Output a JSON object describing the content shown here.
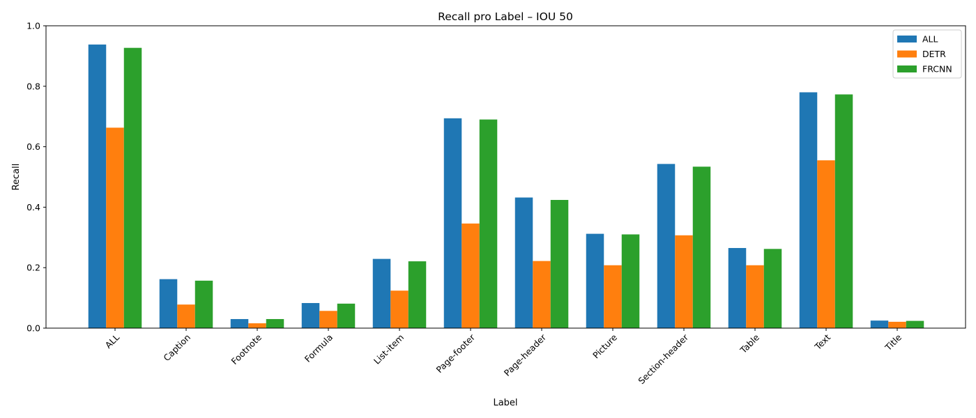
{
  "chart_data": {
    "type": "bar",
    "title": "Recall pro Label – IOU 50",
    "xlabel": "Label",
    "ylabel": "Recall",
    "ylim": [
      0,
      1.0
    ],
    "yticks": [
      "0.0",
      "0.2",
      "0.4",
      "0.6",
      "0.8",
      "1.0"
    ],
    "grid": false,
    "legend_position": "top-right",
    "categories": [
      "ALL",
      "Caption",
      "Footnote",
      "Formula",
      "List-item",
      "Page-footer",
      "Page-header",
      "Picture",
      "Section-header",
      "Table",
      "Text",
      "Title"
    ],
    "series": [
      {
        "name": "ALL",
        "color": "#1f77b4",
        "values": [
          0.938,
          0.162,
          0.03,
          0.083,
          0.229,
          0.694,
          0.432,
          0.312,
          0.543,
          0.265,
          0.78,
          0.025
        ]
      },
      {
        "name": "DETR",
        "color": "#ff7f0e",
        "values": [
          0.663,
          0.078,
          0.016,
          0.057,
          0.124,
          0.346,
          0.222,
          0.208,
          0.307,
          0.208,
          0.555,
          0.021
        ]
      },
      {
        "name": "FRCNN",
        "color": "#2ca02c",
        "values": [
          0.927,
          0.157,
          0.03,
          0.081,
          0.221,
          0.69,
          0.424,
          0.31,
          0.534,
          0.262,
          0.773,
          0.024
        ]
      }
    ]
  }
}
